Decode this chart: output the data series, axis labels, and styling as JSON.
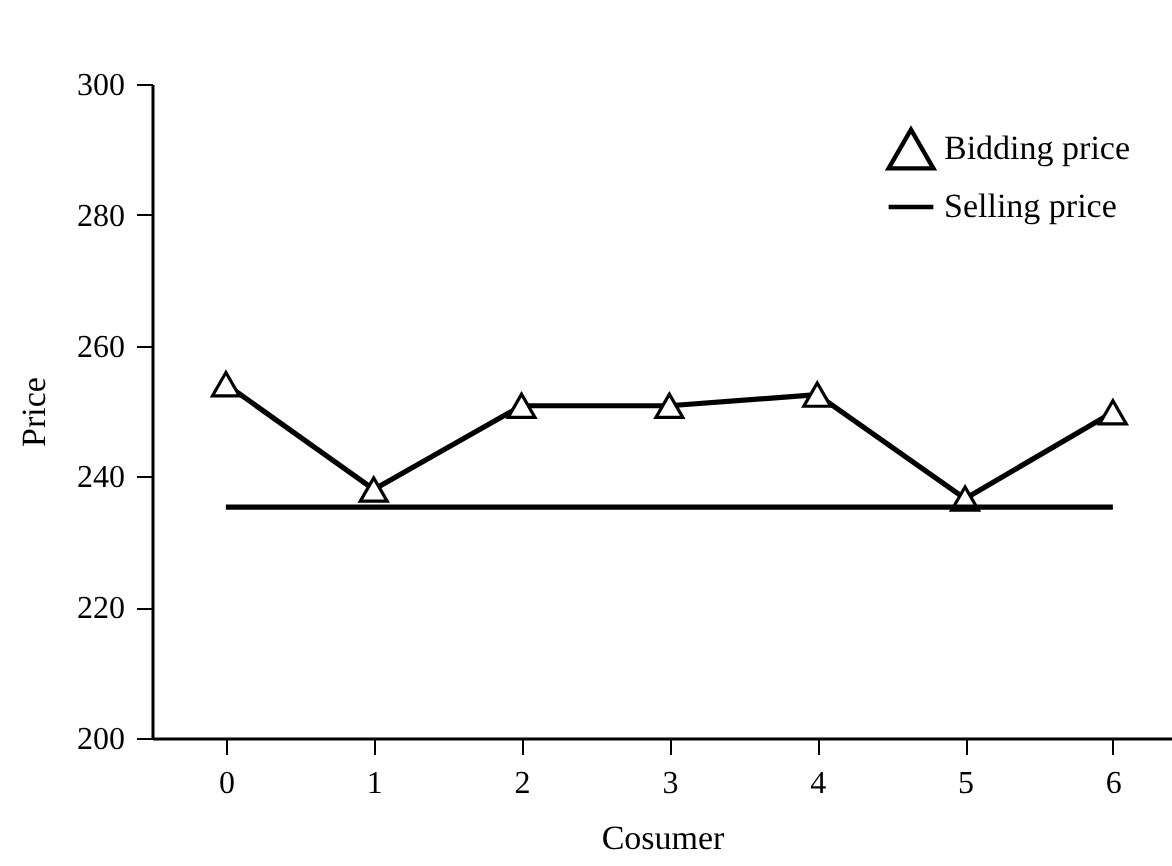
{
  "chart_data": {
    "type": "line",
    "xlabel": "Cosumer",
    "ylabel": "Price",
    "x": [
      0,
      1,
      2,
      3,
      4,
      5,
      6
    ],
    "xlim": [
      -0.5,
      6.4
    ],
    "xticks": [
      0,
      1,
      2,
      3,
      4,
      5,
      6
    ],
    "ylim": [
      200,
      300
    ],
    "yticks": [
      200,
      220,
      240,
      260,
      280,
      300
    ],
    "grid": false,
    "legend": "top right",
    "line_style": "solid",
    "series": [
      {
        "name": "Bidding price",
        "color": "#000000",
        "marker": "triangle",
        "values": [
          254.1,
          238,
          250.8,
          250.8,
          252.5,
          236.6,
          249.8
        ]
      },
      {
        "name": "Selling price",
        "color": "#000000",
        "marker": "none",
        "values": [
          235.3,
          235.3,
          235.3,
          235.3,
          235.3,
          235.3,
          235.3
        ]
      }
    ]
  }
}
